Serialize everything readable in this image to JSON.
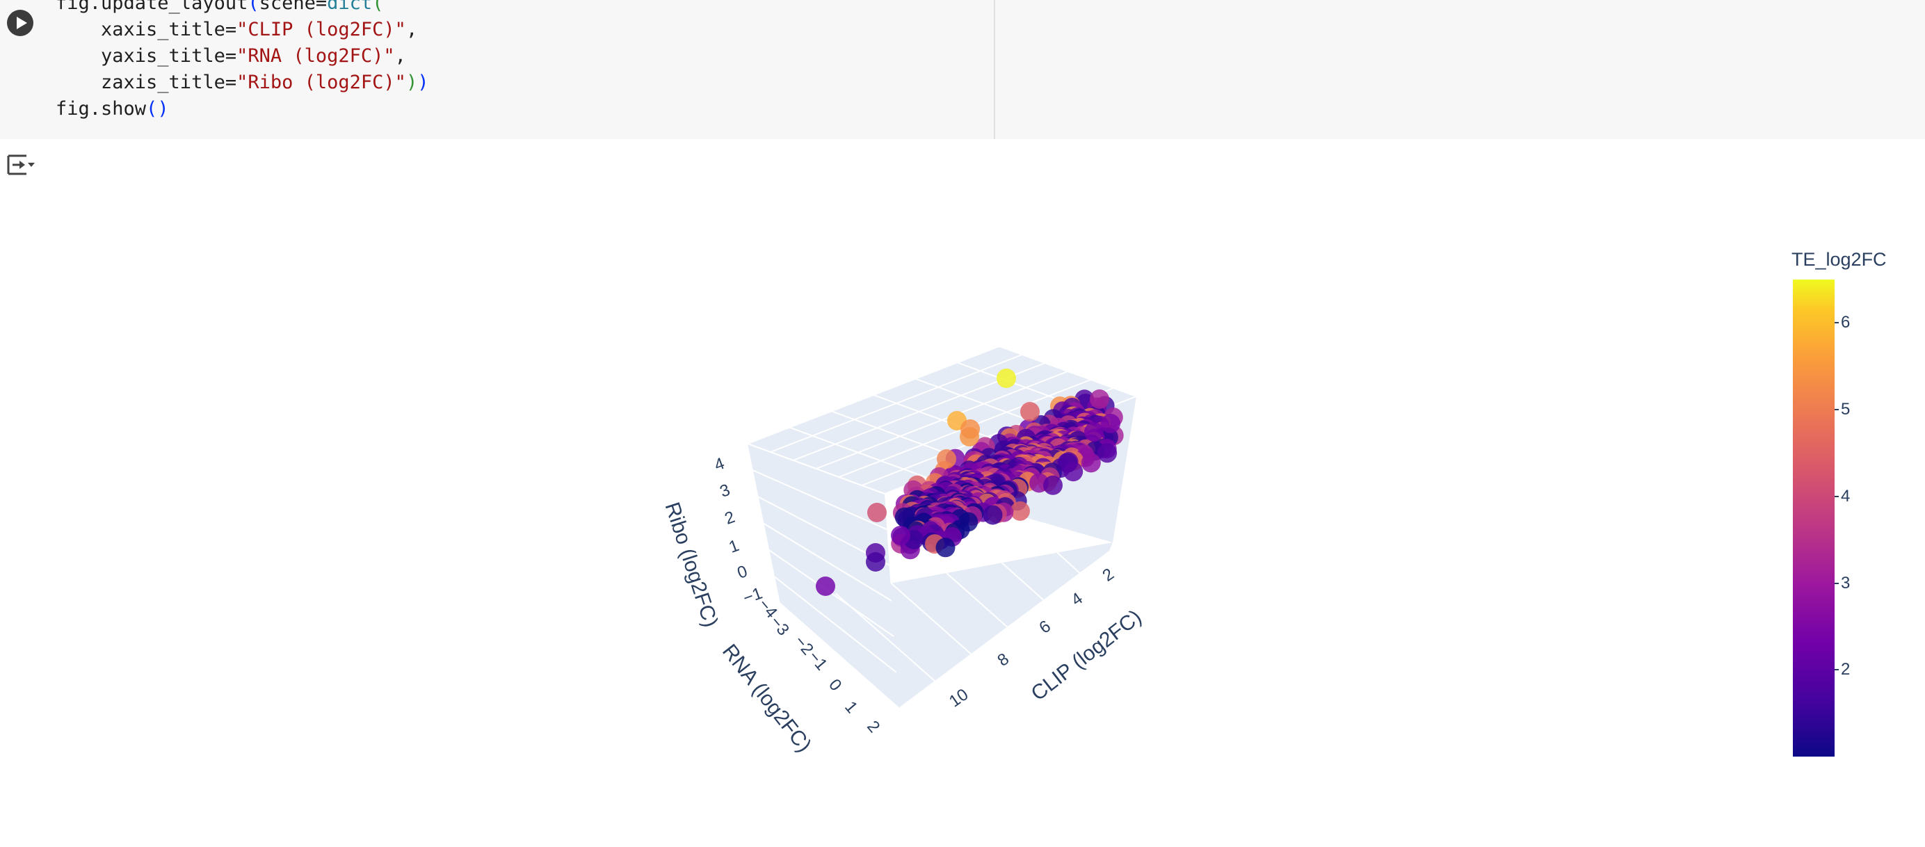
{
  "code_cell": {
    "lines": [
      [
        "fig.update_layout",
        "(",
        "scene=",
        "dict",
        "("
      ],
      [
        "    xaxis_title=",
        "\"CLIP (log2FC)\"",
        ","
      ],
      [
        "    yaxis_title=",
        "\"RNA (log2FC)\"",
        ","
      ],
      [
        "    zaxis_title=",
        "\"Ribo (log2FC)\"",
        ")",
        ")"
      ],
      [
        "fig.show",
        "(",
        ")"
      ]
    ],
    "run_icon": "play-icon",
    "output_icon": "output-toggle-icon"
  },
  "chart_data": {
    "type": "scatter",
    "subtype": "3d-scatter",
    "axes": {
      "x": {
        "title": "CLIP (log2FC)",
        "ticks": [
          "2",
          "4",
          "6",
          "8",
          "10"
        ]
      },
      "y": {
        "title": "RNA (log2FC)",
        "ticks": [
          "−4",
          "−3",
          "−2",
          "−1",
          "0",
          "1",
          "2"
        ]
      },
      "z": {
        "title": "Ribo (log2FC)",
        "ticks": [
          "−1",
          "0",
          "1",
          "2",
          "3",
          "4"
        ]
      }
    },
    "grid": true,
    "background": "#e5ecf6",
    "colorbar": {
      "title": "TE_log2FC",
      "ticks": [
        "2",
        "3",
        "4",
        "5",
        "6"
      ],
      "range": [
        1,
        6.5
      ],
      "colorscale": "plasma"
    },
    "points_sample": [
      {
        "x": 2.5,
        "y": -1.8,
        "z": 4.2,
        "color": 3.2
      },
      {
        "x": 1.6,
        "y": -1.2,
        "z": 3.8,
        "color": 2.0
      },
      {
        "x": 5.0,
        "y": 0.5,
        "z": 4.5,
        "color": 6.5
      },
      {
        "x": 7.0,
        "y": 1.5,
        "z": 3.8,
        "color": 5.2
      },
      {
        "x": 9.5,
        "y": 1.8,
        "z": 0.2,
        "color": 2.4
      },
      {
        "x": 9.0,
        "y": 2.0,
        "z": 1.0,
        "color": 3.8
      },
      {
        "x": 10.0,
        "y": 2.1,
        "z": -0.5,
        "color": 2.5
      }
    ]
  },
  "colors": {
    "axis_text": "#2a3f5f",
    "grid": "#ffffff",
    "pane": "#e5ecf6"
  }
}
